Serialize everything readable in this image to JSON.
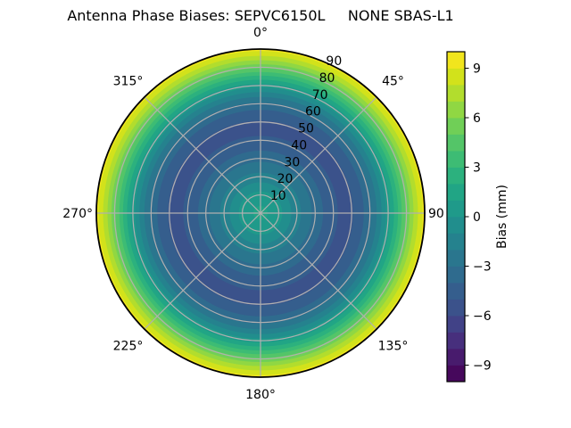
{
  "title": "Antenna Phase Biases: SEPVC6150L     NONE SBAS-L1",
  "chart_data": {
    "type": "heatmap",
    "projection": "polar",
    "title": "Antenna Phase Biases: SEPVC6150L     NONE SBAS-L1",
    "background": "#ffffff",
    "grid_on": true,
    "grid_color": "#b0b0b0",
    "outline_color": "#000000",
    "text_color": "#000000",
    "angle_ticks": [
      {
        "deg": 0,
        "label": "0°"
      },
      {
        "deg": 45,
        "label": "45°"
      },
      {
        "deg": 90,
        "label": "90"
      },
      {
        "deg": 135,
        "label": "135°"
      },
      {
        "deg": 180,
        "label": "180°"
      },
      {
        "deg": 225,
        "label": "225°"
      },
      {
        "deg": 270,
        "label": "270°"
      },
      {
        "deg": 315,
        "label": "315°"
      }
    ],
    "angle_zero_location": "top",
    "angle_direction": "clockwise",
    "radial_ticks": [
      10,
      20,
      30,
      40,
      50,
      60,
      70,
      80,
      90
    ],
    "radial_tick_labels": [
      "10",
      "20",
      "30",
      "40",
      "50",
      "60",
      "70",
      "80",
      "90"
    ],
    "radial_label_angle_deg": 22.5,
    "r_max": 90,
    "grid": {
      "radial_circles": [
        10,
        20,
        30,
        40,
        50,
        60,
        70,
        80
      ],
      "spokes_deg": [
        0,
        45,
        90,
        135,
        180,
        225,
        270,
        315
      ]
    },
    "levels": {
      "min": -10,
      "max": 10,
      "step": 1
    },
    "series": {
      "symmetry": "azimuthal",
      "radius": [
        0,
        5,
        10,
        15,
        20,
        25,
        30,
        35,
        40,
        45,
        50,
        55,
        60,
        65,
        70,
        75,
        80,
        85,
        90
      ],
      "bias_mm": [
        1.2,
        0.95,
        0.4,
        -0.6,
        -1.6,
        -2.5,
        -3.3,
        -4.1,
        -4.8,
        -5.2,
        -5.1,
        -4.4,
        -3.2,
        -1.6,
        0.5,
        2.8,
        5.2,
        7.5,
        9.4
      ]
    },
    "palette_viridis_20": [
      "#46085c",
      "#481b6d",
      "#472f7d",
      "#414287",
      "#3b528b",
      "#355e8d",
      "#2f6b8e",
      "#2a768e",
      "#25828e",
      "#218e8d",
      "#1f9a8a",
      "#21a585",
      "#2cb17e",
      "#3dbc74",
      "#54c568",
      "#70cf57",
      "#90d743",
      "#b2dd2d",
      "#d2e21b",
      "#f1e51d"
    ],
    "colorbar": {
      "label": "Bias (mm)",
      "tick_values": [
        9,
        6,
        3,
        0,
        -3,
        -6,
        -9
      ],
      "tick_labels": [
        "9",
        "6",
        "3",
        "0",
        "−3",
        "−6",
        "−9"
      ],
      "vmin": -10,
      "vmax": 10
    }
  }
}
